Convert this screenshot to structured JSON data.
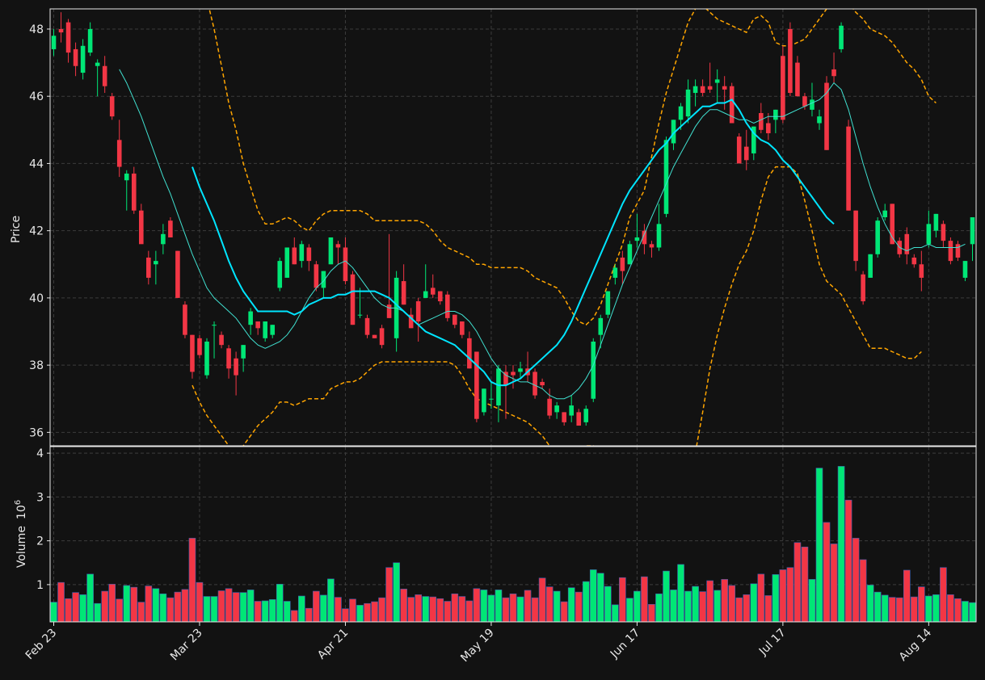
{
  "colors": {
    "background": "#121212",
    "up": "#00e676",
    "down": "#f23645",
    "volume_edge": "#3f5fb0",
    "grid": "#3c3c3c",
    "axes": "#e8e8e8",
    "text": "#e8e8e8",
    "ma_fast": "#40e0d0",
    "ma_slow": "#00e5ff",
    "bands": "#ffa500"
  },
  "chart_data": {
    "type": "candlestick",
    "title": "",
    "price_panel": {
      "ylabel": "Price",
      "ylim": [
        35.6,
        48.6
      ],
      "yticks": [
        36,
        38,
        40,
        42,
        44,
        46,
        48
      ],
      "grid": true
    },
    "volume_panel": {
      "ylabel": "Volume",
      "ylabel_exponent": "10",
      "ylabel_exponent_power": "6",
      "ylim": [
        0.15,
        4.15
      ],
      "yticks": [
        1,
        2,
        3,
        4
      ],
      "grid": true
    },
    "xtick_labels": [
      {
        "index": 0,
        "label": "Feb 23"
      },
      {
        "index": 20,
        "label": "Mar 23"
      },
      {
        "index": 40,
        "label": "Apr 21"
      },
      {
        "index": 60,
        "label": "May 19"
      },
      {
        "index": 80,
        "label": "Jun 17"
      },
      {
        "index": 100,
        "label": "Jul 17"
      },
      {
        "index": 120,
        "label": "Aug 14"
      }
    ],
    "ohlcv_columns": [
      "open",
      "high",
      "low",
      "close",
      "volume_millions"
    ],
    "ohlcv": [
      [
        47.4,
        48.0,
        47.2,
        47.8,
        0.6
      ],
      [
        48.0,
        48.5,
        47.6,
        47.9,
        1.05
      ],
      [
        48.2,
        48.3,
        47.0,
        47.3,
        0.68
      ],
      [
        47.4,
        47.6,
        46.6,
        46.9,
        0.82
      ],
      [
        46.7,
        47.7,
        46.5,
        47.5,
        0.77
      ],
      [
        47.3,
        48.2,
        47.2,
        48.0,
        1.24
      ],
      [
        46.9,
        47.1,
        46.0,
        47.0,
        0.57
      ],
      [
        46.9,
        47.2,
        46.1,
        46.3,
        0.85
      ],
      [
        46.0,
        46.1,
        45.3,
        45.4,
        1.01
      ],
      [
        44.7,
        45.3,
        43.6,
        43.9,
        0.67
      ],
      [
        43.5,
        43.8,
        42.6,
        43.7,
        0.98
      ],
      [
        43.7,
        43.9,
        42.5,
        42.6,
        0.94
      ],
      [
        42.6,
        42.8,
        41.7,
        41.6,
        0.6
      ],
      [
        41.2,
        41.4,
        40.4,
        40.6,
        0.97
      ],
      [
        41.0,
        41.4,
        40.4,
        41.1,
        0.91
      ],
      [
        41.6,
        42.2,
        41.3,
        41.9,
        0.79
      ],
      [
        42.3,
        42.4,
        41.9,
        41.8,
        0.7
      ],
      [
        41.4,
        41.4,
        40.0,
        40.0,
        0.83
      ],
      [
        39.8,
        39.9,
        38.8,
        38.9,
        0.89
      ],
      [
        38.9,
        38.9,
        37.6,
        37.8,
        2.06
      ],
      [
        38.8,
        38.9,
        38.2,
        38.3,
        1.05
      ],
      [
        37.7,
        38.8,
        37.6,
        38.7,
        0.73
      ],
      [
        39.2,
        39.3,
        38.2,
        39.2,
        0.73
      ],
      [
        38.9,
        39.0,
        38.5,
        38.6,
        0.86
      ],
      [
        38.5,
        38.6,
        37.6,
        37.9,
        0.91
      ],
      [
        38.2,
        38.4,
        37.1,
        37.7,
        0.82
      ],
      [
        38.2,
        38.6,
        37.8,
        38.6,
        0.82
      ],
      [
        39.2,
        39.7,
        38.9,
        39.6,
        0.88
      ],
      [
        39.3,
        39.3,
        38.9,
        39.1,
        0.62
      ],
      [
        38.8,
        39.3,
        38.7,
        39.3,
        0.63
      ],
      [
        38.9,
        39.2,
        38.8,
        39.2,
        0.66
      ],
      [
        40.3,
        41.2,
        40.2,
        41.1,
        1.01
      ],
      [
        40.6,
        41.5,
        40.6,
        41.5,
        0.62
      ],
      [
        41.5,
        41.8,
        41.0,
        41.0,
        0.41
      ],
      [
        41.1,
        41.7,
        40.9,
        41.6,
        0.74
      ],
      [
        41.5,
        41.6,
        40.8,
        41.1,
        0.46
      ],
      [
        41.0,
        41.1,
        40.2,
        40.3,
        0.85
      ],
      [
        40.3,
        40.8,
        40.0,
        40.8,
        0.76
      ],
      [
        41.0,
        41.8,
        41.0,
        41.8,
        1.13
      ],
      [
        41.6,
        41.7,
        41.0,
        41.5,
        0.71
      ],
      [
        41.5,
        41.8,
        40.4,
        40.5,
        0.45
      ],
      [
        40.7,
        40.8,
        39.2,
        39.2,
        0.67
      ],
      [
        39.5,
        40.3,
        39.4,
        39.5,
        0.53
      ],
      [
        39.4,
        39.5,
        38.8,
        38.9,
        0.57
      ],
      [
        38.9,
        38.9,
        38.8,
        38.8,
        0.61
      ],
      [
        39.1,
        39.2,
        38.5,
        38.6,
        0.7
      ],
      [
        39.8,
        41.9,
        39.4,
        39.4,
        1.39
      ],
      [
        38.8,
        40.8,
        38.4,
        40.6,
        1.5
      ],
      [
        40.5,
        41.0,
        39.8,
        39.8,
        0.9
      ],
      [
        39.5,
        39.7,
        39.1,
        39.1,
        0.71
      ],
      [
        39.9,
        40.0,
        38.7,
        39.3,
        0.77
      ],
      [
        40.0,
        41.0,
        40.0,
        40.2,
        0.73
      ],
      [
        40.3,
        40.7,
        40.0,
        40.1,
        0.72
      ],
      [
        40.2,
        40.2,
        39.8,
        39.9,
        0.68
      ],
      [
        40.1,
        40.2,
        39.3,
        39.4,
        0.62
      ],
      [
        39.5,
        39.5,
        39.1,
        39.2,
        0.79
      ],
      [
        39.3,
        39.3,
        38.8,
        38.9,
        0.73
      ],
      [
        38.8,
        39.0,
        37.9,
        37.9,
        0.63
      ],
      [
        38.4,
        38.4,
        36.3,
        36.4,
        0.91
      ],
      [
        36.6,
        37.3,
        36.5,
        37.3,
        0.88
      ],
      [
        37.0,
        37.5,
        36.7,
        37.0,
        0.76
      ],
      [
        36.8,
        38.0,
        36.3,
        37.9,
        0.88
      ],
      [
        37.8,
        38.0,
        36.4,
        37.4,
        0.7
      ],
      [
        37.8,
        38.0,
        37.3,
        37.7,
        0.79
      ],
      [
        37.8,
        38.1,
        37.6,
        37.9,
        0.72
      ],
      [
        37.9,
        38.4,
        37.5,
        37.7,
        0.87
      ],
      [
        37.8,
        37.9,
        37.0,
        37.1,
        0.7
      ],
      [
        37.5,
        37.6,
        37.3,
        37.4,
        1.15
      ],
      [
        37.0,
        37.3,
        36.4,
        36.5,
        0.95
      ],
      [
        36.6,
        36.9,
        36.4,
        36.8,
        0.85
      ],
      [
        36.6,
        36.6,
        36.2,
        36.3,
        0.61
      ],
      [
        36.5,
        37.1,
        36.3,
        36.8,
        0.93
      ],
      [
        36.6,
        36.7,
        36.3,
        36.2,
        0.83
      ],
      [
        36.3,
        36.8,
        36.2,
        36.7,
        1.07
      ],
      [
        37.0,
        38.8,
        36.9,
        38.7,
        1.34
      ],
      [
        38.9,
        39.5,
        38.5,
        39.4,
        1.26
      ],
      [
        39.5,
        40.2,
        39.4,
        40.2,
        0.96
      ],
      [
        40.6,
        41.0,
        40.4,
        40.9,
        0.54
      ],
      [
        41.2,
        41.4,
        40.4,
        40.8,
        1.16
      ],
      [
        41.0,
        41.7,
        41.0,
        41.6,
        0.69
      ],
      [
        41.7,
        42.5,
        41.5,
        41.8,
        0.85
      ],
      [
        42.0,
        42.2,
        41.3,
        41.6,
        1.18
      ],
      [
        41.6,
        41.7,
        41.2,
        41.5,
        0.55
      ],
      [
        41.5,
        42.8,
        41.4,
        42.2,
        0.79
      ],
      [
        42.5,
        44.8,
        42.4,
        44.7,
        1.31
      ],
      [
        44.6,
        45.3,
        44.4,
        45.3,
        0.88
      ],
      [
        45.3,
        45.8,
        45.0,
        45.7,
        1.46
      ],
      [
        45.4,
        46.5,
        45.2,
        46.2,
        0.85
      ],
      [
        46.1,
        46.5,
        45.7,
        46.3,
        0.96
      ],
      [
        46.3,
        46.5,
        46.0,
        46.1,
        0.84
      ],
      [
        46.3,
        47.0,
        46.1,
        46.2,
        1.09
      ],
      [
        46.4,
        46.8,
        45.8,
        46.5,
        0.87
      ],
      [
        46.3,
        46.6,
        45.6,
        46.2,
        1.12
      ],
      [
        46.3,
        46.4,
        45.2,
        45.2,
        0.98
      ],
      [
        44.8,
        44.9,
        44.0,
        44.0,
        0.7
      ],
      [
        44.5,
        45.0,
        43.8,
        44.1,
        0.77
      ],
      [
        44.3,
        45.1,
        44.1,
        45.1,
        1.02
      ],
      [
        45.5,
        45.8,
        44.9,
        45.0,
        1.24
      ],
      [
        45.2,
        45.5,
        44.7,
        44.9,
        0.75
      ],
      [
        45.3,
        45.6,
        44.9,
        45.6,
        1.23
      ],
      [
        47.2,
        47.5,
        45.2,
        45.3,
        1.34
      ],
      [
        48.0,
        48.2,
        46.0,
        46.1,
        1.39
      ],
      [
        47.0,
        47.2,
        46.0,
        46.0,
        1.96
      ],
      [
        46.0,
        46.1,
        45.6,
        45.7,
        1.86
      ],
      [
        45.6,
        46.4,
        45.4,
        45.9,
        1.12
      ],
      [
        45.2,
        45.6,
        45.0,
        45.4,
        3.66
      ],
      [
        46.4,
        46.6,
        44.4,
        44.4,
        2.42
      ],
      [
        46.8,
        47.3,
        46.4,
        46.6,
        1.93
      ],
      [
        47.4,
        48.2,
        47.3,
        48.1,
        3.7
      ],
      [
        45.1,
        45.3,
        42.6,
        42.6,
        2.93
      ],
      [
        42.6,
        42.6,
        40.8,
        41.1,
        2.06
      ],
      [
        40.7,
        40.8,
        39.8,
        39.9,
        1.57
      ],
      [
        40.6,
        41.3,
        40.6,
        41.3,
        0.99
      ],
      [
        41.3,
        42.4,
        41.2,
        42.3,
        0.83
      ],
      [
        42.4,
        42.8,
        42.3,
        42.6,
        0.76
      ],
      [
        42.8,
        42.8,
        41.6,
        41.6,
        0.71
      ],
      [
        41.7,
        41.8,
        41.2,
        41.3,
        0.7
      ],
      [
        41.9,
        42.1,
        41.0,
        41.3,
        1.33
      ],
      [
        41.2,
        41.3,
        40.9,
        41.0,
        0.72
      ],
      [
        41.0,
        41.4,
        40.2,
        40.6,
        0.95
      ],
      [
        41.6,
        42.6,
        41.5,
        42.2,
        0.74
      ],
      [
        42.0,
        42.5,
        41.8,
        42.5,
        0.77
      ],
      [
        42.2,
        42.3,
        41.5,
        41.7,
        1.39
      ],
      [
        41.7,
        41.8,
        41.0,
        41.1,
        0.77
      ],
      [
        41.6,
        41.7,
        41.1,
        41.2,
        0.68
      ],
      [
        40.6,
        41.1,
        40.5,
        41.1,
        0.62
      ],
      [
        41.6,
        42.4,
        41.1,
        42.4,
        0.59
      ]
    ],
    "moving_average_fast": [
      null,
      null,
      null,
      null,
      null,
      null,
      null,
      null,
      null,
      46.8,
      46.4,
      45.9,
      45.4,
      44.8,
      44.2,
      43.6,
      43.1,
      42.5,
      41.9,
      41.3,
      40.8,
      40.3,
      40.0,
      39.8,
      39.6,
      39.4,
      39.1,
      38.8,
      38.6,
      38.5,
      38.6,
      38.7,
      38.9,
      39.2,
      39.6,
      40.0,
      40.3,
      40.5,
      40.8,
      41.0,
      41.1,
      40.9,
      40.6,
      40.3,
      40.0,
      39.8,
      39.7,
      39.7,
      39.6,
      39.4,
      39.2,
      39.3,
      39.4,
      39.5,
      39.6,
      39.6,
      39.5,
      39.3,
      39.0,
      38.6,
      38.2,
      37.9,
      37.7,
      37.6,
      37.5,
      37.5,
      37.4,
      37.3,
      37.1,
      37.0,
      37.0,
      37.1,
      37.3,
      37.6,
      38.0,
      38.6,
      39.2,
      39.8,
      40.4,
      40.9,
      41.4,
      41.9,
      42.4,
      42.9,
      43.4,
      43.9,
      44.3,
      44.7,
      45.1,
      45.4,
      45.6,
      45.6,
      45.5,
      45.4,
      45.3,
      45.3,
      45.2,
      45.3,
      45.4,
      45.4,
      45.4,
      45.5,
      45.6,
      45.7,
      45.8,
      45.9,
      46.1,
      46.4,
      46.2,
      45.6,
      44.8,
      44.0,
      43.3,
      42.7,
      42.2,
      41.8,
      41.5,
      41.4,
      41.5,
      41.5,
      41.6,
      41.5,
      41.5,
      41.5,
      41.5,
      41.6
    ],
    "moving_average_slow": [
      null,
      null,
      null,
      null,
      null,
      null,
      null,
      null,
      null,
      null,
      null,
      null,
      null,
      null,
      null,
      null,
      null,
      null,
      null,
      43.9,
      43.3,
      42.8,
      42.3,
      41.7,
      41.1,
      40.6,
      40.2,
      39.9,
      39.6,
      39.6,
      39.6,
      39.6,
      39.6,
      39.5,
      39.6,
      39.8,
      39.9,
      40.0,
      40.0,
      40.1,
      40.1,
      40.2,
      40.2,
      40.2,
      40.2,
      40.1,
      40.0,
      39.8,
      39.6,
      39.4,
      39.2,
      39.0,
      38.9,
      38.8,
      38.7,
      38.6,
      38.4,
      38.2,
      38.0,
      37.8,
      37.5,
      37.4,
      37.4,
      37.5,
      37.6,
      37.8,
      38.0,
      38.2,
      38.4,
      38.6,
      38.9,
      39.3,
      39.8,
      40.3,
      40.8,
      41.3,
      41.8,
      42.3,
      42.8,
      43.2,
      43.5,
      43.8,
      44.1,
      44.4,
      44.6,
      44.9,
      45.1,
      45.3,
      45.5,
      45.7,
      45.7,
      45.8,
      45.8,
      45.9,
      45.6,
      45.2,
      44.9,
      44.7,
      44.6,
      44.4,
      44.1,
      43.9,
      43.6,
      43.3,
      43.0,
      42.7,
      42.4,
      42.2
    ],
    "upper_band": [
      null,
      null,
      null,
      null,
      null,
      null,
      null,
      null,
      null,
      null,
      null,
      null,
      null,
      null,
      null,
      null,
      null,
      null,
      null,
      50.0,
      49.6,
      48.9,
      48.0,
      46.9,
      45.8,
      45.0,
      44.0,
      43.3,
      42.6,
      42.2,
      42.2,
      42.3,
      42.4,
      42.3,
      42.1,
      42.0,
      42.3,
      42.5,
      42.6,
      42.6,
      42.6,
      42.6,
      42.6,
      42.5,
      42.3,
      42.3,
      42.3,
      42.3,
      42.3,
      42.3,
      42.3,
      42.2,
      42.0,
      41.7,
      41.5,
      41.4,
      41.3,
      41.2,
      41.0,
      41.0,
      40.9,
      40.9,
      40.9,
      40.9,
      40.9,
      40.8,
      40.6,
      40.5,
      40.4,
      40.3,
      40.0,
      39.6,
      39.3,
      39.2,
      39.4,
      39.8,
      40.4,
      41.0,
      41.6,
      42.4,
      42.8,
      43.2,
      44.2,
      45.2,
      46.1,
      46.8,
      47.5,
      48.2,
      48.6,
      48.7,
      48.5,
      48.3,
      48.2,
      48.1,
      48.0,
      47.9,
      48.3,
      48.4,
      48.2,
      47.6,
      47.5,
      47.5,
      47.6,
      47.7,
      48.0,
      48.3,
      48.6,
      48.9,
      49.0,
      48.8,
      48.5,
      48.3,
      48.0,
      47.9,
      47.8,
      47.6,
      47.3,
      47.0,
      46.8,
      46.5,
      46.0,
      45.8
    ],
    "lower_band": [
      null,
      null,
      null,
      null,
      null,
      null,
      null,
      null,
      null,
      null,
      null,
      null,
      null,
      null,
      null,
      null,
      null,
      null,
      null,
      37.4,
      36.9,
      36.5,
      36.2,
      35.9,
      35.6,
      35.5,
      35.6,
      35.9,
      36.2,
      36.4,
      36.6,
      36.9,
      36.9,
      36.8,
      36.9,
      37.0,
      37.0,
      37.0,
      37.3,
      37.4,
      37.5,
      37.5,
      37.6,
      37.8,
      38.0,
      38.1,
      38.1,
      38.1,
      38.1,
      38.1,
      38.1,
      38.1,
      38.1,
      38.1,
      38.1,
      38.0,
      37.7,
      37.3,
      37.0,
      36.9,
      36.8,
      36.7,
      36.6,
      36.5,
      36.4,
      36.3,
      36.1,
      35.9,
      35.6,
      35.5,
      35.4,
      35.4,
      35.5,
      35.6,
      35.6,
      35.3,
      35.0,
      34.7,
      34.2,
      33.8,
      33.5,
      33.3,
      33.2,
      33.1,
      33.0,
      33.1,
      33.4,
      34.2,
      35.4,
      36.6,
      37.9,
      38.9,
      39.7,
      40.4,
      41.0,
      41.4,
      42.0,
      42.9,
      43.6,
      43.9,
      43.9,
      43.9,
      43.7,
      42.9,
      42.0,
      41.0,
      40.5,
      40.3,
      40.1,
      39.7,
      39.3,
      38.9,
      38.5,
      38.5,
      38.5,
      38.4,
      38.3,
      38.2,
      38.2,
      38.4
    ]
  }
}
